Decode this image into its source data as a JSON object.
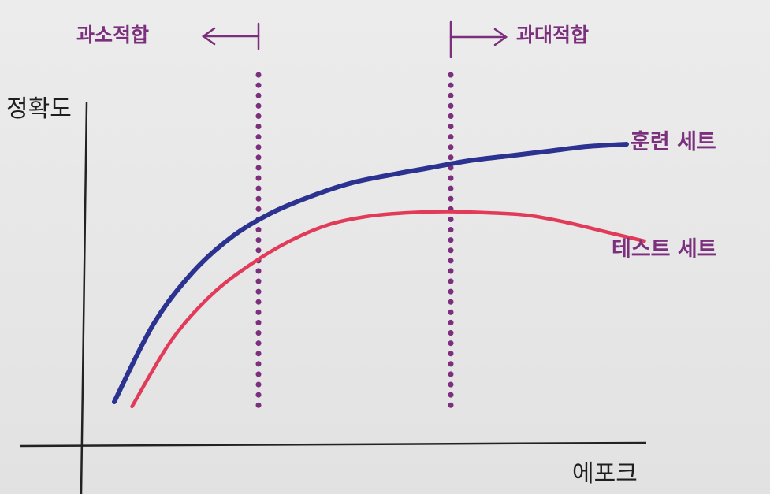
{
  "chart_data": {
    "type": "line",
    "title": "",
    "xlabel": "에포크",
    "ylabel": "정확도",
    "x": [
      0,
      1,
      2,
      3,
      4,
      5,
      6,
      7,
      8,
      9,
      10,
      11,
      12,
      13
    ],
    "series": [
      {
        "name": "훈련 세트",
        "color": "#2c3290",
        "values": [
          0.0,
          0.33,
          0.55,
          0.7,
          0.8,
          0.87,
          0.925,
          0.96,
          0.99,
          1.02,
          1.04,
          1.06,
          1.08,
          1.09
        ]
      },
      {
        "name": "테스트 세트",
        "color": "#e23b5a",
        "values": [
          -0.02,
          0.26,
          0.45,
          0.58,
          0.68,
          0.75,
          0.785,
          0.8,
          0.805,
          0.8,
          0.79,
          0.76,
          0.72,
          0.68
        ]
      }
    ],
    "vlines": [
      4,
      9
    ],
    "regions": {
      "left_label": "과소적합",
      "right_label": "과대적합"
    },
    "grid": false,
    "legend": "inline-right"
  }
}
